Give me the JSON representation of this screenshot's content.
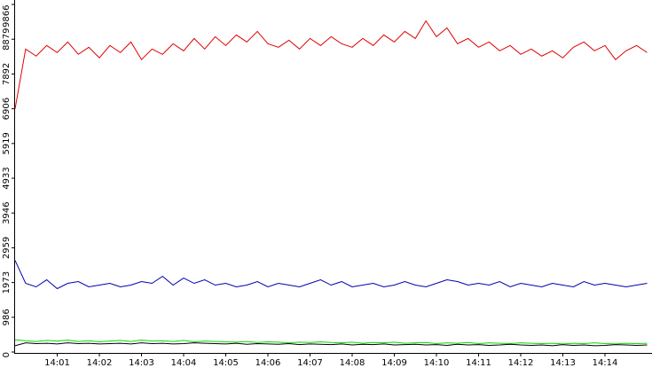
{
  "chart_data": {
    "type": "line",
    "categories": [
      null,
      null,
      null,
      null,
      "14:01",
      null,
      null,
      null,
      "14:02",
      null,
      null,
      null,
      "14:03",
      null,
      null,
      null,
      "14:04",
      null,
      null,
      null,
      "14:05",
      null,
      null,
      null,
      "14:06",
      null,
      null,
      null,
      "14:07",
      null,
      null,
      null,
      "14:08",
      null,
      null,
      null,
      "14:09",
      null,
      null,
      null,
      "14:10",
      null,
      null,
      null,
      "14:11",
      null,
      null,
      null,
      "14:12",
      null,
      null,
      null,
      "14:13",
      null,
      null,
      null,
      "14:14",
      null,
      null,
      null,
      null
    ],
    "ylim": [
      0,
      9866
    ],
    "yticks": [
      0,
      986,
      1973,
      2959,
      3946,
      4933,
      5919,
      6906,
      7892,
      8879,
      9866
    ],
    "grid": false,
    "series": [
      {
        "color": "#e00000",
        "values": [
          6900,
          8600,
          8400,
          8700,
          8500,
          8800,
          8450,
          8650,
          8350,
          8700,
          8500,
          8800,
          8300,
          8600,
          8450,
          8750,
          8550,
          8900,
          8600,
          8950,
          8700,
          9000,
          8800,
          9100,
          8750,
          8650,
          8850,
          8600,
          8900,
          8700,
          8950,
          8750,
          8650,
          8900,
          8700,
          9000,
          8800,
          9100,
          8900,
          9400,
          8950,
          9200,
          8750,
          8900,
          8650,
          8800,
          8550,
          8700,
          8450,
          8600,
          8400,
          8550,
          8350,
          8650,
          8800,
          8550,
          8700,
          8300,
          8550,
          8700,
          8500
        ]
      },
      {
        "color": "#0000b0",
        "values": [
          2600,
          1950,
          1850,
          2050,
          1800,
          1950,
          2000,
          1850,
          1900,
          1950,
          1850,
          1900,
          2000,
          1950,
          2150,
          1900,
          2100,
          1950,
          2050,
          1900,
          1950,
          1850,
          1900,
          2000,
          1850,
          1950,
          1900,
          1850,
          1950,
          2050,
          1900,
          2000,
          1850,
          1900,
          1950,
          1850,
          1900,
          2000,
          1900,
          1850,
          1950,
          2050,
          2000,
          1900,
          1950,
          1900,
          2000,
          1850,
          1950,
          1900,
          1850,
          1950,
          1900,
          1850,
          2000,
          1900,
          1950,
          1900,
          1850,
          1900,
          1950
        ]
      },
      {
        "color": "#00dd00",
        "values": [
          350,
          320,
          300,
          330,
          310,
          340,
          300,
          320,
          290,
          310,
          330,
          300,
          340,
          310,
          320,
          300,
          330,
          290,
          310,
          300,
          290,
          280,
          300,
          270,
          290,
          280,
          260,
          280,
          270,
          290,
          270,
          260,
          280,
          250,
          270,
          260,
          280,
          250,
          260,
          270,
          240,
          260,
          250,
          270,
          240,
          260,
          250,
          240,
          260,
          250,
          240,
          250,
          230,
          250,
          240,
          260,
          240,
          230,
          250,
          240,
          250
        ]
      },
      {
        "color": "#000000",
        "values": [
          180,
          260,
          240,
          250,
          230,
          260,
          240,
          250,
          230,
          240,
          250,
          230,
          260,
          240,
          250,
          230,
          240,
          260,
          250,
          240,
          230,
          250,
          220,
          240,
          230,
          220,
          240,
          210,
          230,
          220,
          210,
          230,
          200,
          220,
          210,
          230,
          200,
          210,
          220,
          200,
          210,
          190,
          220,
          200,
          210,
          190,
          200,
          220,
          200,
          190,
          200,
          180,
          210,
          190,
          200,
          180,
          190,
          210,
          200,
          190,
          200
        ]
      }
    ]
  }
}
